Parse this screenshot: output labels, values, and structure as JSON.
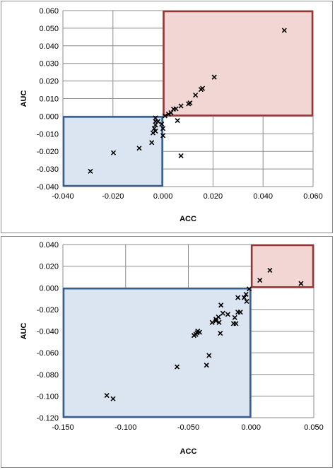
{
  "colors": {
    "gridline": "#8c8c8c",
    "positive_region_fill": "#f2d6d3",
    "positive_region_stroke": "#953735",
    "negative_region_fill": "#dbe5f1",
    "negative_region_stroke": "#365f91",
    "marker": "#000000"
  },
  "chart_data": [
    {
      "type": "scatter",
      "title": "",
      "xlabel": "ACC",
      "ylabel": "AUC",
      "xlim": [
        -0.04,
        0.06
      ],
      "ylim": [
        -0.04,
        0.06
      ],
      "grid": true,
      "marker": "x",
      "x_ticks": [
        "-0.040",
        "-0.020",
        "0.000",
        "0.020",
        "0.040",
        "0.060"
      ],
      "y_ticks": [
        "-0.040",
        "-0.030",
        "-0.020",
        "-0.010",
        "0.000",
        "0.010",
        "0.020",
        "0.030",
        "0.040",
        "0.050",
        "0.060"
      ],
      "regions": [
        {
          "kind": "positive",
          "x_range": [
            0.0,
            0.06
          ],
          "y_range": [
            0.0,
            0.06
          ]
        },
        {
          "kind": "negative",
          "x_range": [
            -0.04,
            0.0
          ],
          "y_range": [
            -0.04,
            0.0
          ]
        }
      ],
      "points": [
        [
          0.0485,
          0.0488
        ],
        [
          0.0205,
          0.0222
        ],
        [
          0.0158,
          0.0158
        ],
        [
          0.0152,
          0.0152
        ],
        [
          0.013,
          0.012
        ],
        [
          0.0108,
          0.0075
        ],
        [
          0.0102,
          0.007
        ],
        [
          0.0072,
          0.0058
        ],
        [
          0.0052,
          0.0042
        ],
        [
          0.0042,
          0.004
        ],
        [
          0.0032,
          0.002
        ],
        [
          0.0022,
          0.0012
        ],
        [
          0.0008,
          0.0002
        ],
        [
          0.0058,
          -0.0025
        ],
        [
          0.0072,
          -0.0225
        ],
        [
          -0.003,
          -0.001
        ],
        [
          -0.003,
          -0.003
        ],
        [
          -0.003,
          -0.005
        ],
        [
          -0.0035,
          -0.007
        ],
        [
          -0.003,
          -0.0085
        ],
        [
          -0.004,
          -0.0095
        ],
        [
          -0.002,
          -0.003
        ],
        [
          -0.0005,
          -0.0045
        ],
        [
          0.0,
          -0.007
        ],
        [
          0.0,
          -0.011
        ],
        [
          -0.0045,
          -0.015
        ],
        [
          -0.0095,
          -0.0182
        ],
        [
          -0.0198,
          -0.0208
        ],
        [
          -0.029,
          -0.0313
        ]
      ]
    },
    {
      "type": "scatter",
      "title": "",
      "xlabel": "ACC",
      "ylabel": "AUC",
      "xlim": [
        -0.15,
        0.05
      ],
      "ylim": [
        -0.12,
        0.04
      ],
      "grid": true,
      "marker": "x",
      "x_ticks": [
        "-0.150",
        "-0.100",
        "-0.050",
        "0.000",
        "0.050"
      ],
      "y_ticks": [
        "-0.120",
        "-0.100",
        "-0.080",
        "-0.060",
        "-0.040",
        "-0.020",
        "0.000",
        "0.020",
        "0.040"
      ],
      "regions": [
        {
          "kind": "positive",
          "x_range": [
            0.0,
            0.05
          ],
          "y_range": [
            0.0,
            0.04
          ]
        },
        {
          "kind": "negative",
          "x_range": [
            -0.15,
            0.0
          ],
          "y_range": [
            -0.12,
            0.0
          ]
        }
      ],
      "points": [
        [
          0.0398,
          0.004
        ],
        [
          0.015,
          0.0162
        ],
        [
          0.007,
          0.007
        ],
        [
          -0.0015,
          -0.001
        ],
        [
          -0.004,
          -0.006
        ],
        [
          -0.0055,
          -0.009
        ],
        [
          -0.0035,
          -0.0125
        ],
        [
          -0.0105,
          -0.009
        ],
        [
          -0.0085,
          -0.0225
        ],
        [
          -0.0105,
          -0.0225
        ],
        [
          -0.013,
          -0.0275
        ],
        [
          -0.012,
          -0.033
        ],
        [
          -0.014,
          -0.033
        ],
        [
          -0.0185,
          -0.0245
        ],
        [
          -0.0225,
          -0.0235
        ],
        [
          -0.024,
          -0.016
        ],
        [
          -0.026,
          -0.027
        ],
        [
          -0.028,
          -0.029
        ],
        [
          -0.0255,
          -0.032
        ],
        [
          -0.031,
          -0.032
        ],
        [
          -0.0245,
          -0.042
        ],
        [
          -0.028,
          -0.0305
        ],
        [
          -0.0425,
          -0.04
        ],
        [
          -0.041,
          -0.041
        ],
        [
          -0.044,
          -0.043
        ],
        [
          -0.0455,
          -0.044
        ],
        [
          -0.043,
          -0.0415
        ],
        [
          -0.0335,
          -0.0625
        ],
        [
          -0.0355,
          -0.0715
        ],
        [
          -0.059,
          -0.073
        ],
        [
          -0.115,
          -0.0995
        ],
        [
          -0.11,
          -0.1025
        ]
      ]
    }
  ]
}
